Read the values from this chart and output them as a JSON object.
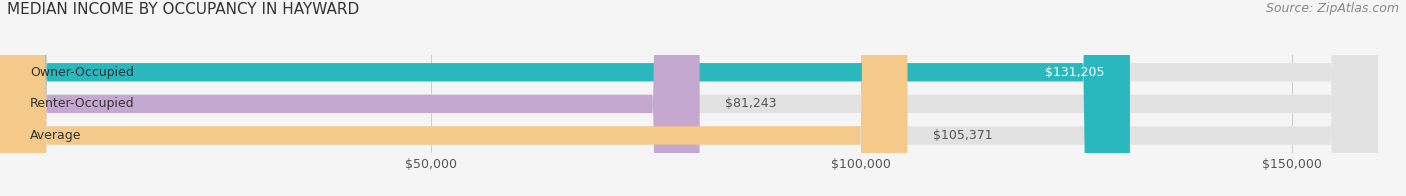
{
  "title": "MEDIAN INCOME BY OCCUPANCY IN HAYWARD",
  "source": "Source: ZipAtlas.com",
  "categories": [
    "Owner-Occupied",
    "Renter-Occupied",
    "Average"
  ],
  "values": [
    131205,
    81243,
    105371
  ],
  "bar_colors": [
    "#2ab8bf",
    "#c4a8d0",
    "#f5c98a"
  ],
  "value_labels": [
    "$131,205",
    "$81,243",
    "$105,371"
  ],
  "value_label_inside": [
    true,
    false,
    false
  ],
  "xlim": [
    0,
    160000
  ],
  "xticks": [
    50000,
    100000,
    150000
  ],
  "xtick_labels": [
    "$50,000",
    "$100,000",
    "$150,000"
  ],
  "background_color": "#f5f5f5",
  "bar_background_color": "#e2e2e2",
  "title_fontsize": 11,
  "source_fontsize": 9,
  "label_fontsize": 9,
  "bar_height": 0.58,
  "figsize": [
    14.06,
    1.96
  ],
  "dpi": 100
}
